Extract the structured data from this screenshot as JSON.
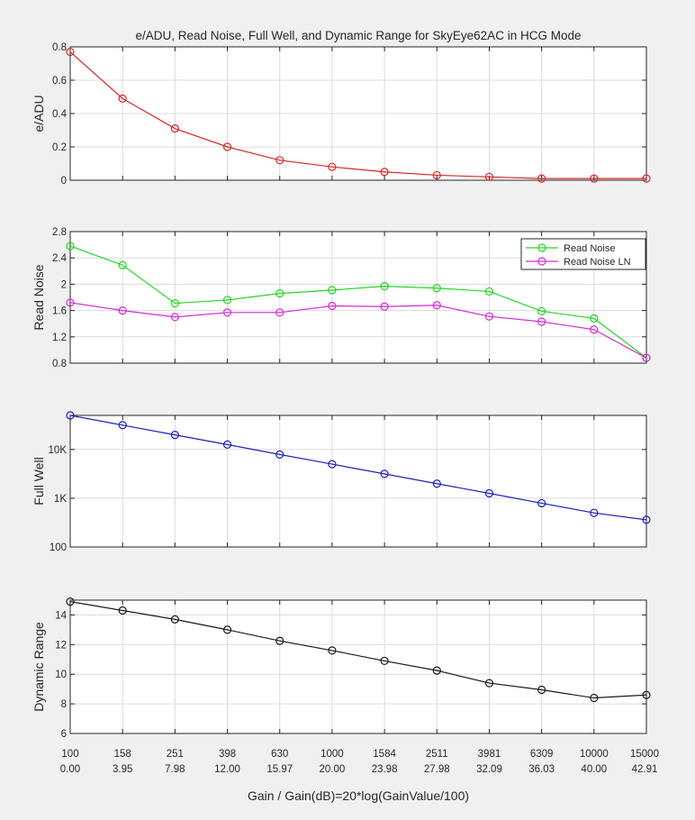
{
  "figure_title": "e/ADU, Read Noise, Full Well, and Dynamic Range for SkyEye62AC in HCG Mode",
  "xlabel": "Gain / Gain(dB)=20*log(GainValue/100)",
  "x_tick_gain": [
    "100",
    "158",
    "251",
    "398",
    "630",
    "1000",
    "1584",
    "2511",
    "3981",
    "6309",
    "10000",
    "15000"
  ],
  "x_tick_db": [
    "0.00",
    "3.95",
    "7.98",
    "12.00",
    "15.97",
    "20.00",
    "23.98",
    "27.98",
    "32.09",
    "36.03",
    "40.00",
    "42.91"
  ],
  "chart_data": [
    {
      "type": "line",
      "title": "e/ADU, Read Noise, Full Well, and Dynamic Range for SkyEye62AC in HCG Mode",
      "ylabel": "e/ADU",
      "x": [
        100,
        158,
        251,
        398,
        630,
        1000,
        1584,
        2511,
        3981,
        6309,
        10000,
        15000
      ],
      "ylim": [
        0,
        0.8
      ],
      "yticks": [
        0,
        0.2,
        0.4,
        0.6,
        0.8
      ],
      "ytick_labels": [
        "0",
        "0.2",
        "0.4",
        "0.6",
        "0.8"
      ],
      "yscale": "linear",
      "grid": true,
      "series": [
        {
          "color": "#d62728",
          "marker": "circle",
          "values": [
            0.77,
            0.49,
            0.31,
            0.2,
            0.12,
            0.08,
            0.05,
            0.03,
            0.02,
            0.01,
            0.01,
            0.01
          ]
        }
      ]
    },
    {
      "type": "line",
      "ylabel": "Read Noise",
      "x": [
        100,
        158,
        251,
        398,
        630,
        1000,
        1584,
        2511,
        3981,
        6309,
        10000,
        15000
      ],
      "ylim": [
        0.8,
        2.8
      ],
      "yticks": [
        0.8,
        1.2,
        1.6,
        2.0,
        2.4,
        2.8
      ],
      "ytick_labels": [
        "0.8",
        "1.2",
        "1.6",
        "2",
        "2.4",
        "2.8"
      ],
      "yscale": "linear",
      "grid": true,
      "legend": "top-right",
      "series": [
        {
          "name": "Read Noise",
          "color": "#22d622",
          "marker": "circle",
          "values": [
            2.58,
            2.29,
            1.71,
            1.76,
            1.86,
            1.91,
            1.97,
            1.94,
            1.89,
            1.59,
            1.48,
            0.88
          ]
        },
        {
          "name": "Read Noise LN",
          "color": "#d62ad6",
          "marker": "circle",
          "values": [
            1.72,
            1.6,
            1.5,
            1.57,
            1.57,
            1.67,
            1.66,
            1.68,
            1.51,
            1.43,
            1.31,
            0.88
          ]
        }
      ]
    },
    {
      "type": "line",
      "ylabel": "Full Well",
      "x": [
        100,
        158,
        251,
        398,
        630,
        1000,
        1584,
        2511,
        3981,
        6309,
        10000,
        15000
      ],
      "ylim": [
        100,
        50000
      ],
      "yticks": [
        100,
        1000,
        10000
      ],
      "ytick_labels": [
        "100",
        "1K",
        "10K"
      ],
      "yscale": "log",
      "grid": true,
      "series": [
        {
          "color": "#1f1fbf",
          "marker": "circle",
          "values": [
            50000,
            31600,
            19900,
            12600,
            7900,
            5000,
            3160,
            1990,
            1260,
            790,
            500,
            360
          ]
        }
      ]
    },
    {
      "type": "line",
      "ylabel": "Dynamic Range",
      "x": [
        100,
        158,
        251,
        398,
        630,
        1000,
        1584,
        2511,
        3981,
        6309,
        10000,
        15000
      ],
      "ylim": [
        6,
        15
      ],
      "yticks": [
        6,
        8,
        10,
        12,
        14
      ],
      "ytick_labels": [
        "6",
        "8",
        "10",
        "12",
        "14"
      ],
      "yscale": "linear",
      "grid": true,
      "series": [
        {
          "color": "#1a1a1a",
          "marker": "circle",
          "values": [
            14.9,
            14.3,
            13.7,
            13.0,
            12.25,
            11.6,
            10.9,
            10.25,
            9.4,
            8.95,
            8.4,
            8.6
          ]
        }
      ]
    }
  ]
}
